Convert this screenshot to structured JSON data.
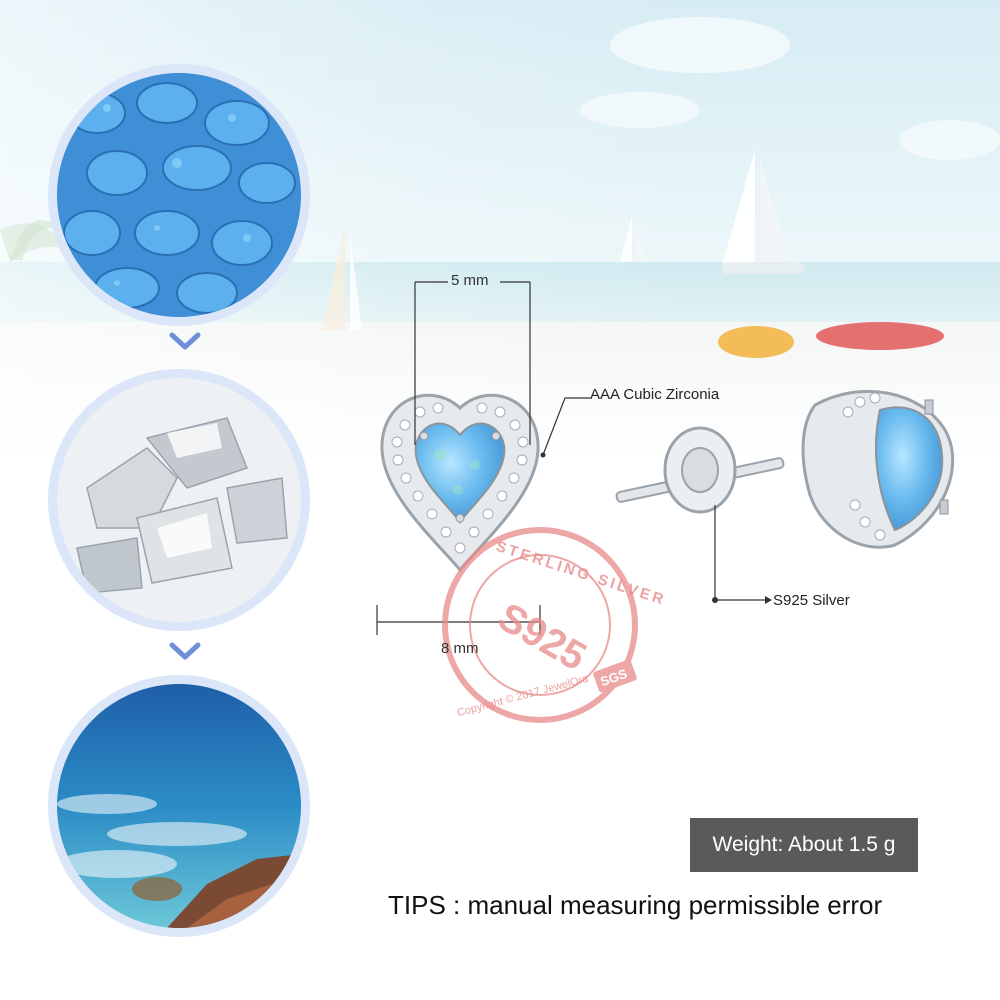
{
  "steps": [
    {
      "label": "opal-stones",
      "icon": "opal-stones-image"
    },
    {
      "label": "silver-ingots",
      "icon": "silver-ingots-image"
    },
    {
      "label": "ocean",
      "icon": "ocean-image"
    }
  ],
  "dimensions": {
    "top_width": "5 mm",
    "bottom_width": "8 mm"
  },
  "callouts": {
    "stone": "AAA Cubic Zirconia",
    "metal": "S925 Silver"
  },
  "stamp": {
    "arc_text": "STERLING SILVER",
    "center_text": "S925",
    "bottom_text": "Copyright © 2017 JewelOra",
    "badge": "SGS"
  },
  "weight_label": "Weight: About 1.5 g",
  "tips": "TIPS : manual measuring permissible error",
  "colors": {
    "circle_ring": "#dbe7f8",
    "arrow": "#6e8fd8",
    "weight_bg": "#5a5a5a",
    "stamp": "#e88a8a",
    "opal_blue": "#4aa3e0"
  }
}
